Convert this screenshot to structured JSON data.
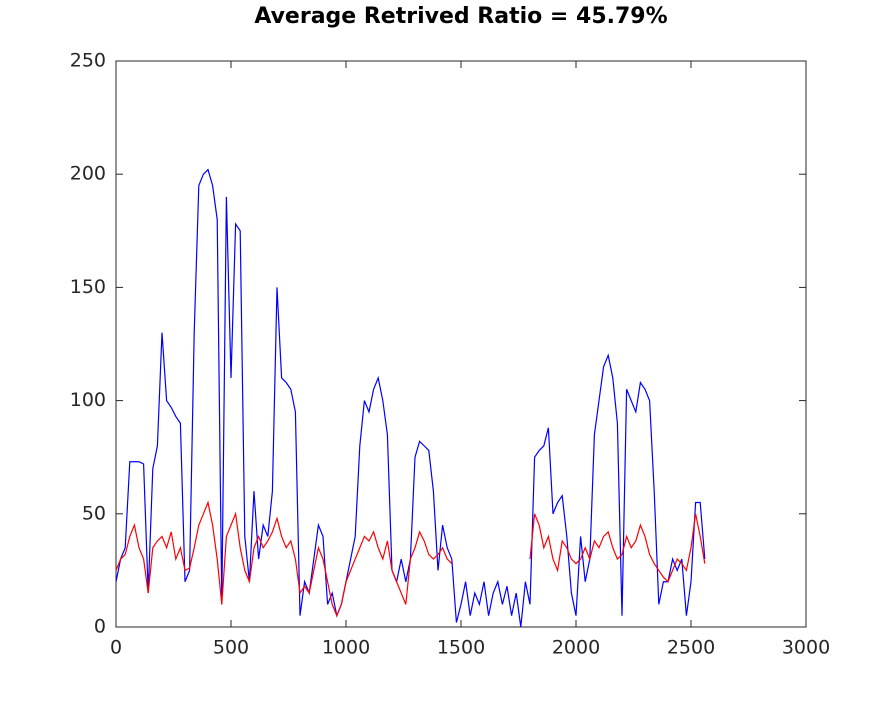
{
  "chart_data": {
    "type": "line",
    "title": "Average Retrived Ratio = 45.79%",
    "x": [
      0,
      20,
      40,
      60,
      80,
      100,
      120,
      140,
      160,
      180,
      200,
      220,
      240,
      260,
      280,
      300,
      320,
      340,
      360,
      380,
      400,
      420,
      440,
      460,
      480,
      500,
      520,
      540,
      560,
      580,
      600,
      620,
      640,
      660,
      680,
      700,
      720,
      740,
      760,
      780,
      800,
      820,
      840,
      860,
      880,
      900,
      920,
      940,
      960,
      980,
      1000,
      1020,
      1040,
      1060,
      1080,
      1100,
      1120,
      1140,
      1160,
      1180,
      1200,
      1220,
      1240,
      1260,
      1280,
      1300,
      1320,
      1340,
      1360,
      1380,
      1400,
      1420,
      1440,
      1460,
      1480,
      1500,
      1520,
      1540,
      1560,
      1580,
      1600,
      1620,
      1640,
      1660,
      1680,
      1700,
      1720,
      1740,
      1760,
      1780,
      1800,
      1820,
      1840,
      1860,
      1880,
      1900,
      1920,
      1940,
      1960,
      1980,
      2000,
      2020,
      2040,
      2060,
      2080,
      2100,
      2120,
      2140,
      2160,
      2180,
      2200,
      2220,
      2240,
      2260,
      2280,
      2300,
      2320,
      2340,
      2360,
      2380,
      2400,
      2420,
      2440,
      2460,
      2480,
      2500,
      2520,
      2540,
      2560
    ],
    "series": [
      {
        "color": "#0000ff",
        "values": [
          20,
          30,
          35,
          73,
          73,
          73,
          72,
          15,
          70,
          80,
          130,
          100,
          97,
          93,
          90,
          20,
          25,
          130,
          195,
          200,
          202,
          195,
          180,
          10,
          190,
          110,
          178,
          175,
          40,
          20,
          60,
          30,
          45,
          40,
          60,
          150,
          110,
          108,
          105,
          95,
          5,
          20,
          15,
          30,
          45,
          40,
          10,
          15,
          5,
          10,
          20,
          30,
          40,
          80,
          100,
          95,
          105,
          110,
          100,
          85,
          25,
          20,
          30,
          20,
          30,
          75,
          82,
          80,
          78,
          60,
          25,
          45,
          35,
          30,
          2,
          10,
          20,
          5,
          15,
          10,
          20,
          5,
          15,
          20,
          10,
          18,
          5,
          15,
          0,
          20,
          10,
          75,
          78,
          80,
          88,
          50,
          55,
          58,
          40,
          15,
          5,
          40,
          20,
          30,
          85,
          100,
          115,
          120,
          110,
          90,
          5,
          105,
          100,
          95,
          108,
          105,
          100,
          60,
          10,
          20,
          20,
          30,
          25,
          30,
          5,
          20,
          55,
          55,
          30
        ]
      },
      {
        "color": "#ff0000",
        "values": [
          25,
          30,
          32,
          40,
          45,
          35,
          30,
          15,
          35,
          38,
          40,
          35,
          42,
          30,
          35,
          25,
          26,
          35,
          45,
          50,
          55,
          45,
          30,
          10,
          40,
          45,
          50,
          35,
          25,
          20,
          35,
          40,
          35,
          38,
          42,
          48,
          40,
          35,
          38,
          30,
          15,
          18,
          15,
          25,
          35,
          30,
          20,
          10,
          5,
          10,
          20,
          25,
          30,
          35,
          40,
          38,
          42,
          35,
          30,
          38,
          25,
          20,
          15,
          10,
          30,
          35,
          42,
          38,
          32,
          30,
          32,
          35,
          30,
          28,
          null,
          null,
          null,
          null,
          null,
          null,
          null,
          null,
          null,
          null,
          null,
          null,
          null,
          null,
          null,
          null,
          30,
          50,
          45,
          35,
          40,
          30,
          25,
          38,
          35,
          30,
          28,
          30,
          35,
          30,
          38,
          35,
          40,
          42,
          35,
          30,
          32,
          40,
          35,
          38,
          45,
          40,
          32,
          28,
          25,
          22,
          20,
          25,
          30,
          28,
          25,
          35,
          50,
          40,
          28
        ]
      }
    ],
    "xlim": [
      0,
      3000
    ],
    "xticks": [
      0,
      500,
      1000,
      1500,
      2000,
      2500,
      3000
    ],
    "ylim": [
      0,
      250
    ],
    "yticks": [
      0,
      50,
      100,
      150,
      200,
      250
    ]
  }
}
